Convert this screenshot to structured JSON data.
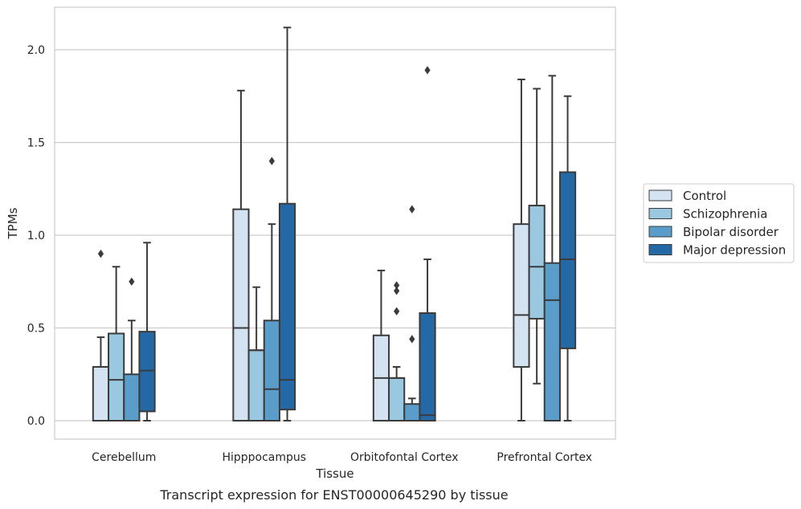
{
  "chart_data": {
    "type": "box",
    "title": "",
    "caption": "Transcript expression for ENST00000645290 by tissue",
    "xlabel": "Tissue",
    "ylabel": "TPMs",
    "ylim": [
      -0.1,
      2.24
    ],
    "yticks": [
      "0.0",
      "0.5",
      "1.0",
      "1.5",
      "2.0"
    ],
    "grid": "horizontal",
    "legend_position": "right",
    "categories": [
      "Cerebellum",
      "Hipppocampus",
      "Orbitofontal Cortex",
      "Prefrontal Cortex"
    ],
    "series": [
      {
        "name": "Control",
        "color": "#d3e3f2",
        "boxes": [
          {
            "whislo": 0.0,
            "q1": 0.0,
            "med": 0.0,
            "q3": 0.29,
            "whishi": 0.45,
            "fliers": [
              0.9
            ]
          },
          {
            "whislo": 0.0,
            "q1": 0.0,
            "med": 0.5,
            "q3": 1.14,
            "whishi": 1.78,
            "fliers": []
          },
          {
            "whislo": 0.0,
            "q1": 0.0,
            "med": 0.23,
            "q3": 0.46,
            "whishi": 0.81,
            "fliers": []
          },
          {
            "whislo": 0.0,
            "q1": 0.29,
            "med": 0.57,
            "q3": 1.06,
            "whishi": 1.84,
            "fliers": []
          }
        ]
      },
      {
        "name": "Schizophrenia",
        "color": "#9ac8e0",
        "boxes": [
          {
            "whislo": 0.0,
            "q1": 0.0,
            "med": 0.22,
            "q3": 0.47,
            "whishi": 0.83,
            "fliers": []
          },
          {
            "whislo": 0.0,
            "q1": 0.0,
            "med": 0.38,
            "q3": 0.38,
            "whishi": 0.72,
            "fliers": []
          },
          {
            "whislo": 0.0,
            "q1": 0.0,
            "med": 0.23,
            "q3": 0.23,
            "whishi": 0.29,
            "fliers": [
              0.59,
              0.7,
              0.73
            ]
          },
          {
            "whislo": 0.2,
            "q1": 0.55,
            "med": 0.83,
            "q3": 1.16,
            "whishi": 1.79,
            "fliers": []
          }
        ]
      },
      {
        "name": "Bipolar disorder",
        "color": "#5a9dcb",
        "boxes": [
          {
            "whislo": 0.0,
            "q1": 0.0,
            "med": 0.0,
            "q3": 0.25,
            "whishi": 0.54,
            "fliers": [
              0.75
            ]
          },
          {
            "whislo": 0.0,
            "q1": 0.0,
            "med": 0.17,
            "q3": 0.54,
            "whishi": 1.06,
            "fliers": [
              1.4
            ]
          },
          {
            "whislo": 0.0,
            "q1": 0.0,
            "med": 0.0,
            "q3": 0.09,
            "whishi": 0.12,
            "fliers": [
              0.44,
              1.14
            ]
          },
          {
            "whislo": 0.0,
            "q1": 0.0,
            "med": 0.65,
            "q3": 0.85,
            "whishi": 1.86,
            "fliers": []
          }
        ]
      },
      {
        "name": "Major depression",
        "color": "#2568a6",
        "boxes": [
          {
            "whislo": 0.0,
            "q1": 0.05,
            "med": 0.27,
            "q3": 0.48,
            "whishi": 0.96,
            "fliers": []
          },
          {
            "whislo": 0.0,
            "q1": 0.06,
            "med": 0.22,
            "q3": 1.17,
            "whishi": 2.12,
            "fliers": []
          },
          {
            "whislo": 0.0,
            "q1": 0.0,
            "med": 0.03,
            "q3": 0.58,
            "whishi": 0.87,
            "fliers": [
              1.89
            ]
          },
          {
            "whislo": 0.0,
            "q1": 0.39,
            "med": 0.87,
            "q3": 1.34,
            "whishi": 1.75,
            "fliers": []
          }
        ]
      }
    ]
  }
}
